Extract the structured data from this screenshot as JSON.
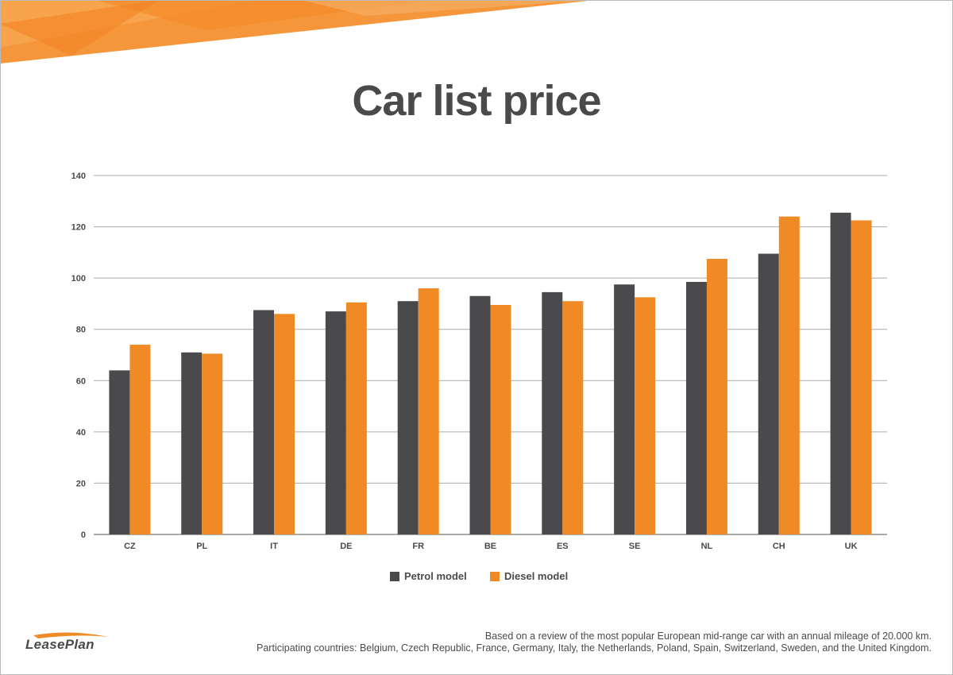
{
  "page": {
    "title": "Car list price",
    "footnote_line1": "Based on a review of the most popular European mid-range car with an annual mileage of 20.000 km.",
    "footnote_line2": "Participating countries: Belgium, Czech Republic, France, Germany, Italy, the Netherlands, Poland, Spain, Switzerland, Sweden, and the United Kingdom.",
    "logo_text": "LeasePlan"
  },
  "colors": {
    "petrol": "#4a4a4c",
    "diesel": "#f08a24",
    "banner_light": "#f7a04a",
    "banner_dark": "#f07a1e",
    "grid": "#aaaaaa"
  },
  "chart_data": {
    "type": "bar",
    "title": "Car list price",
    "xlabel": "",
    "ylabel": "",
    "categories": [
      "CZ",
      "PL",
      "IT",
      "DE",
      "FR",
      "BE",
      "ES",
      "SE",
      "NL",
      "CH",
      "UK"
    ],
    "series": [
      {
        "name": "Petrol model",
        "values": [
          64,
          71,
          87.5,
          87,
          91,
          93,
          94.5,
          97.5,
          98.5,
          109.5,
          125.5
        ]
      },
      {
        "name": "Diesel model",
        "values": [
          74,
          70.5,
          86,
          90.5,
          96,
          89.5,
          91,
          92.5,
          107.5,
          124,
          122.5
        ]
      }
    ],
    "ylim": [
      0,
      140
    ],
    "yticks": [
      0,
      20,
      40,
      60,
      80,
      100,
      120,
      140
    ],
    "grid": true,
    "legend_position": "bottom"
  }
}
